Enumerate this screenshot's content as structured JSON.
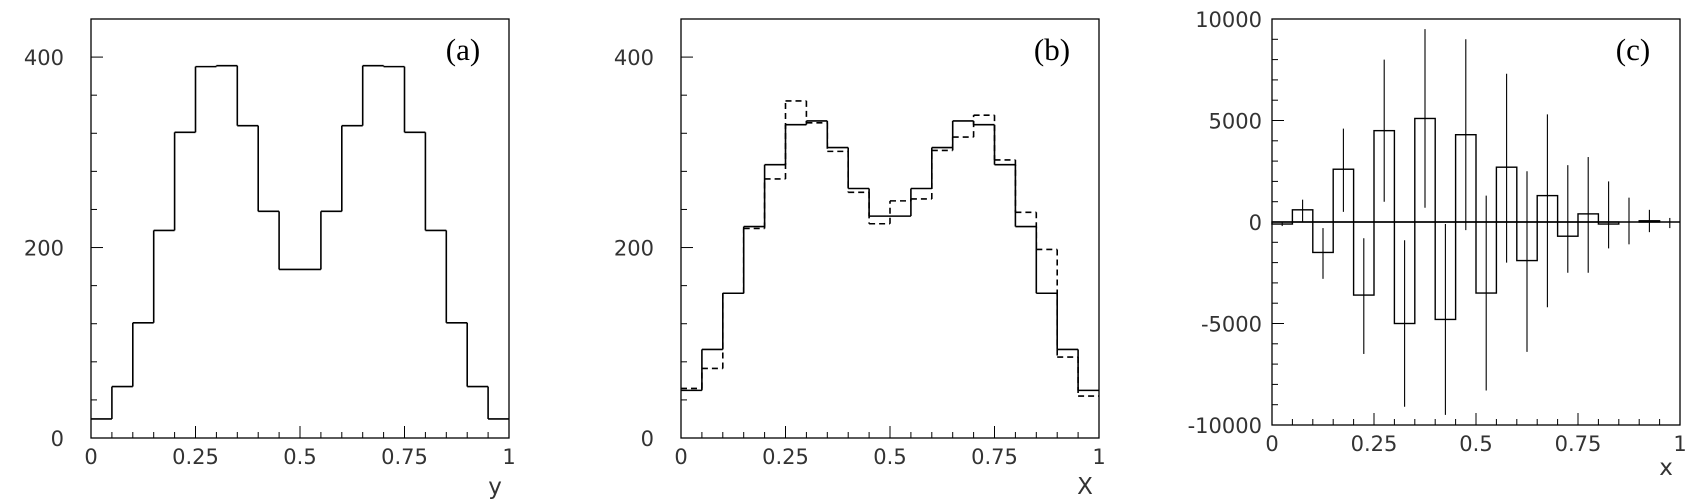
{
  "chart_data": [
    {
      "type": "histogram",
      "panel_label": "(a)",
      "xlabel": "y",
      "ylabel": "",
      "xlim": [
        0,
        1
      ],
      "ylim": [
        0,
        440
      ],
      "x_ticks": [
        "0",
        "0.25",
        "0.5",
        "0.75",
        "1"
      ],
      "y_ticks": [
        "0",
        "200",
        "400"
      ],
      "bin_edges": [
        0,
        0.05,
        0.1,
        0.15,
        0.2,
        0.25,
        0.3,
        0.35,
        0.4,
        0.45,
        0.5,
        0.55,
        0.6,
        0.65,
        0.7,
        0.75,
        0.8,
        0.85,
        0.9,
        0.95,
        1.0
      ],
      "series": [
        {
          "line_style": "solid",
          "values": [
            20,
            54,
            121,
            218,
            321,
            390,
            391,
            328,
            238,
            177,
            177,
            238,
            328,
            391,
            390,
            321,
            218,
            121,
            54,
            20
          ]
        }
      ]
    },
    {
      "type": "histogram",
      "panel_label": "(b)",
      "xlabel": "X",
      "ylabel": "",
      "xlim": [
        0,
        1
      ],
      "ylim": [
        0,
        440
      ],
      "x_ticks": [
        "0",
        "0.25",
        "0.5",
        "0.75",
        "1"
      ],
      "y_ticks": [
        "0",
        "200",
        "400"
      ],
      "bin_edges": [
        0,
        0.05,
        0.1,
        0.15,
        0.2,
        0.25,
        0.3,
        0.35,
        0.4,
        0.45,
        0.5,
        0.55,
        0.6,
        0.65,
        0.7,
        0.75,
        0.8,
        0.85,
        0.9,
        0.95,
        1.0
      ],
      "series": [
        {
          "line_style": "solid",
          "values": [
            50,
            93,
            152,
            222,
            287,
            329,
            333,
            305,
            262,
            233,
            233,
            262,
            305,
            333,
            329,
            287,
            222,
            152,
            93,
            50
          ]
        },
        {
          "line_style": "dashed",
          "values": [
            52,
            73,
            152,
            220,
            272,
            354,
            331,
            301,
            258,
            225,
            249,
            251,
            302,
            316,
            339,
            292,
            237,
            198,
            85,
            44
          ]
        }
      ]
    },
    {
      "type": "histogram_with_error_bars",
      "panel_label": "(c)",
      "xlabel": "x",
      "ylabel": "",
      "xlim": [
        0,
        1
      ],
      "ylim": [
        -10000,
        10000
      ],
      "x_ticks": [
        "0",
        "0.25",
        "0.5",
        "0.75",
        "1"
      ],
      "y_ticks": [
        "-10000",
        "-5000",
        "0",
        "5000",
        "10000"
      ],
      "zero_line": true,
      "bin_edges": [
        0,
        0.05,
        0.1,
        0.15,
        0.2,
        0.25,
        0.3,
        0.35,
        0.4,
        0.45,
        0.5,
        0.55,
        0.6,
        0.65,
        0.7,
        0.75,
        0.8,
        0.85,
        0.9,
        0.95,
        1.0
      ],
      "series": [
        {
          "line_style": "solid",
          "values": [
            -100,
            600,
            -1500,
            2600,
            -3600,
            4500,
            -5000,
            5100,
            -4800,
            4300,
            -3500,
            2700,
            -1900,
            1300,
            -700,
            400,
            -100,
            0,
            60,
            0
          ],
          "error_low": [
            -200,
            0,
            -2800,
            500,
            -6500,
            1000,
            -9100,
            700,
            -9500,
            -400,
            -8300,
            -2000,
            -6400,
            -4200,
            -2500,
            -2500,
            -1300,
            -1100,
            -500,
            -300
          ],
          "error_high": [
            0,
            1100,
            -300,
            4600,
            -800,
            8000,
            -900,
            9500,
            -100,
            9000,
            1300,
            7300,
            2500,
            5300,
            2800,
            3200,
            2000,
            1200,
            600,
            200
          ]
        }
      ]
    }
  ]
}
